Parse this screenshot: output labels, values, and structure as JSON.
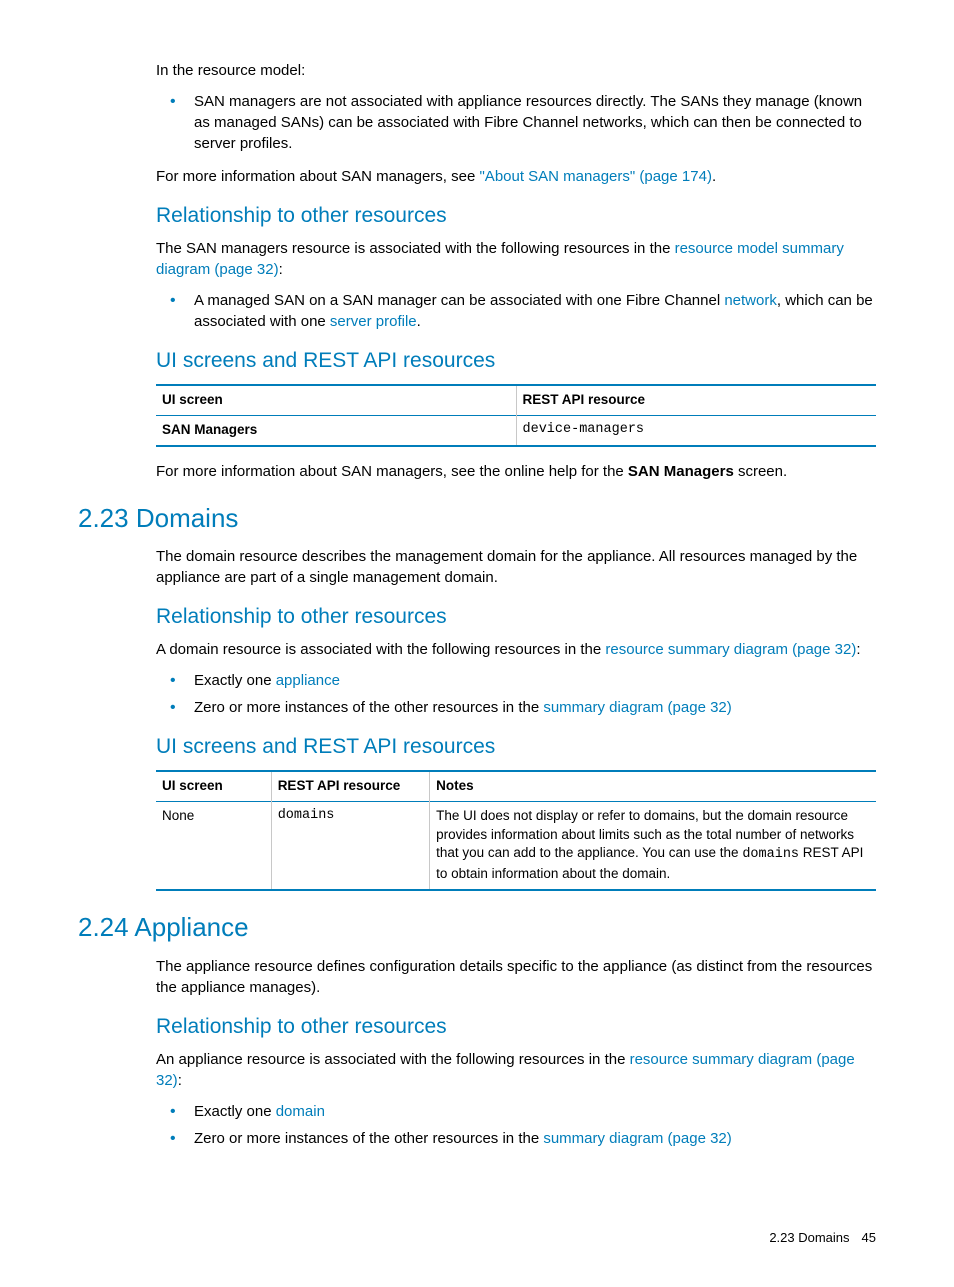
{
  "colors": {
    "accent": "#007dba",
    "text": "#000000",
    "rule": "#c8c8c8",
    "bg": "#ffffff"
  },
  "intro": {
    "lead": "In the resource model:",
    "bullet": "SAN managers are not associated with appliance resources directly. The SANs they manage (known as managed SANs) can be associated with Fibre Channel networks, which can then be connected to server profiles.",
    "more_prefix": "For more information about SAN managers, see ",
    "more_link": "\"About SAN managers\" (page 174)",
    "more_suffix": "."
  },
  "rel1": {
    "heading": "Relationship to other resources",
    "p_prefix": "The SAN managers resource is associated with the following resources in the ",
    "p_link": "resource model summary diagram (page 32)",
    "p_suffix": ":",
    "bullet_a": "A managed SAN on a SAN manager can be associated with one Fibre Channel ",
    "bullet_a_link1": "network",
    "bullet_a_mid": ", which can be associated with one ",
    "bullet_a_link2": "server profile",
    "bullet_a_end": "."
  },
  "ui1": {
    "heading": "UI screens and REST API resources",
    "table": {
      "col1": "UI screen",
      "col2": "REST API resource",
      "r1c1": "SAN Managers",
      "r1c2": "device-managers",
      "col1_width": "50%",
      "col2_width": "50%"
    },
    "after_prefix": "For more information about SAN managers, see the online help for the ",
    "after_bold": "SAN Managers",
    "after_suffix": " screen."
  },
  "sec223": {
    "title": "2.23 Domains",
    "p": "The domain resource describes the management domain for the appliance. All resources managed by the appliance are part of a single management domain.",
    "rel_heading": "Relationship to other resources",
    "rel_prefix": "A domain resource is associated with the following resources in the ",
    "rel_link": "resource summary diagram (page 32)",
    "rel_suffix": ":",
    "b1_prefix": "Exactly one ",
    "b1_link": "appliance",
    "b2_prefix": "Zero or more instances of the other resources in the ",
    "b2_link": "summary diagram (page 32)",
    "ui_heading": "UI screens and REST API resources",
    "table": {
      "col1": "UI screen",
      "col2": "REST API resource",
      "col3": "Notes",
      "col1_width": "16%",
      "col2_width": "22%",
      "col3_width": "62%",
      "r1c1": "None",
      "r1c2": "domains",
      "r1c3_a": "The UI does not display or refer to domains, but the domain resource provides information about limits such as the total number of networks that you can add to the appliance. You can use the ",
      "r1c3_code": "domains",
      "r1c3_b": " REST API to obtain information about the domain."
    }
  },
  "sec224": {
    "title": "2.24 Appliance",
    "p": "The appliance resource defines configuration details specific to the appliance (as distinct from the resources the appliance manages).",
    "rel_heading": "Relationship to other resources",
    "rel_prefix": "An appliance resource is associated with the following resources in the ",
    "rel_link": "resource summary diagram (page 32)",
    "rel_suffix": ":",
    "b1_prefix": "Exactly one ",
    "b1_link": "domain",
    "b2_prefix": "Zero or more instances of the other resources in the ",
    "b2_link": "summary diagram (page 32)"
  },
  "footer": {
    "text": "2.23 Domains",
    "page": "45"
  }
}
